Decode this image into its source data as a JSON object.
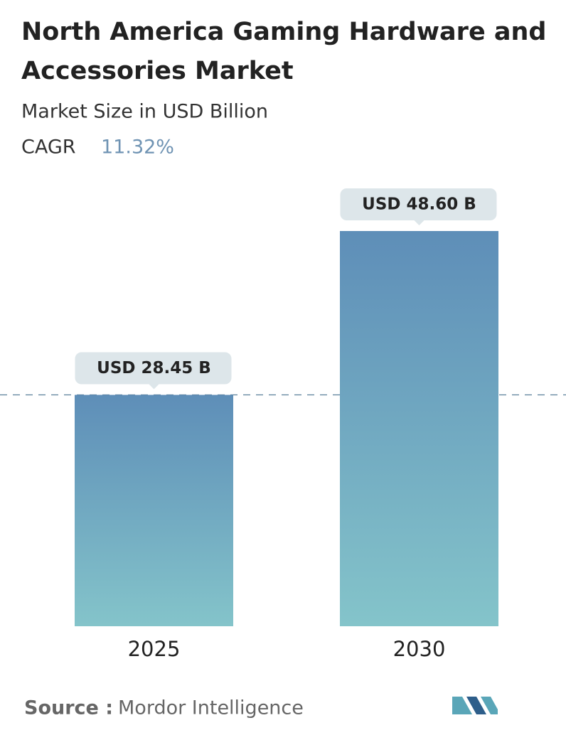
{
  "chart_data": {
    "type": "bar",
    "title_lines": [
      "North America Gaming Hardware and",
      "Accessories Market"
    ],
    "subtitle": "Market Size in USD Billion",
    "cagr_label": "CAGR",
    "cagr_value": "11.32%",
    "categories": [
      "2025",
      "2030"
    ],
    "values": [
      28.45,
      48.6
    ],
    "value_labels": [
      "USD 28.45 B",
      "USD 48.60 B"
    ],
    "colors": [
      "#5e8eb8",
      "#84c4ca"
    ],
    "source_label": "Source :",
    "source": "Mordor Intelligence"
  }
}
